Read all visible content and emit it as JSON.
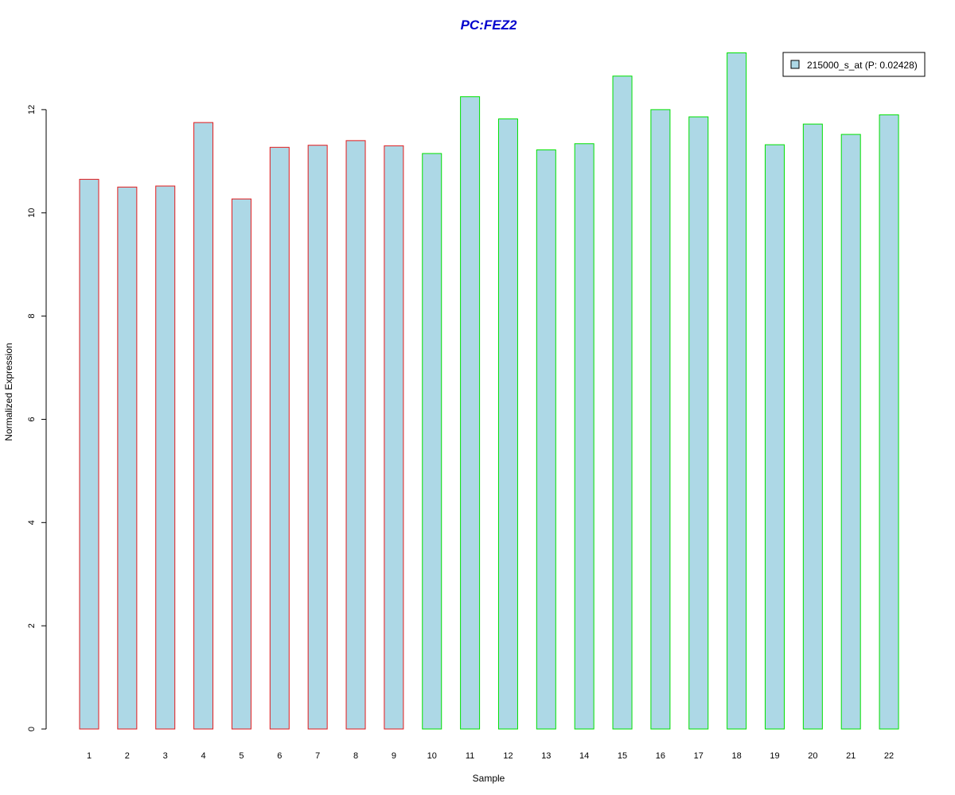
{
  "chart_data": {
    "type": "bar",
    "title": "PC:FEZ2",
    "xlabel": "Sample",
    "ylabel": "Normalized Expression",
    "categories": [
      "1",
      "2",
      "3",
      "4",
      "5",
      "6",
      "7",
      "8",
      "9",
      "10",
      "11",
      "12",
      "13",
      "14",
      "15",
      "16",
      "17",
      "18",
      "19",
      "20",
      "21",
      "22"
    ],
    "series": [
      {
        "name": "215000_s_at (P: 0.02428)",
        "values": [
          10.65,
          10.5,
          10.52,
          11.75,
          10.27,
          11.27,
          11.31,
          11.4,
          11.3,
          11.15,
          12.25,
          11.82,
          11.22,
          11.34,
          12.65,
          12.0,
          11.86,
          13.1,
          11.32,
          11.72,
          11.52,
          11.9
        ]
      }
    ],
    "groups": [
      {
        "samples": [
          1,
          2,
          3,
          4,
          5,
          6,
          7,
          8,
          9
        ],
        "border_color": "#e31a1c"
      },
      {
        "samples": [
          10,
          11,
          12,
          13,
          14,
          15,
          16,
          17,
          18,
          19,
          20,
          21,
          22
        ],
        "border_color": "#00e000"
      }
    ],
    "ylim": [
      0,
      13.2
    ],
    "yticks": [
      0,
      2,
      4,
      6,
      8,
      10,
      12
    ],
    "grid": false,
    "legend_position": "top-right",
    "colors": {
      "bar_fill": "#add8e6",
      "title": "#0000cd",
      "axis": "#000000"
    }
  }
}
